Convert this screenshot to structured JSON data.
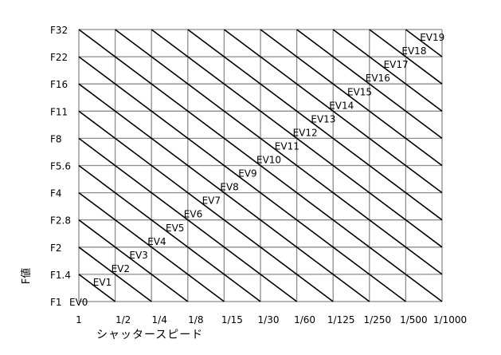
{
  "diagram": {
    "y_axis_title": "F値",
    "x_axis_title": "シャッタースピード",
    "y_ticks": [
      "F1",
      "F1.4",
      "F2",
      "F2.8",
      "F4",
      "F5.6",
      "F8",
      "F11",
      "F16",
      "F22",
      "F32"
    ],
    "x_ticks": [
      "1",
      "1/2",
      "1/4",
      "1/8",
      "1/15",
      "1/30",
      "1/60",
      "1/125",
      "1/250",
      "1/500",
      "1/1000"
    ],
    "ev_labels": [
      "EV0",
      "EV1",
      "EV2",
      "EV3",
      "EV4",
      "EV5",
      "EV6",
      "EV7",
      "EV8",
      "EV9",
      "EV10",
      "EV11",
      "EV12",
      "EV13",
      "EV14",
      "EV15",
      "EV16",
      "EV17",
      "EV18",
      "EV19"
    ],
    "colors": {
      "grid": "#8c8c8c",
      "ev_line": "#000000",
      "text": "#000000"
    }
  }
}
